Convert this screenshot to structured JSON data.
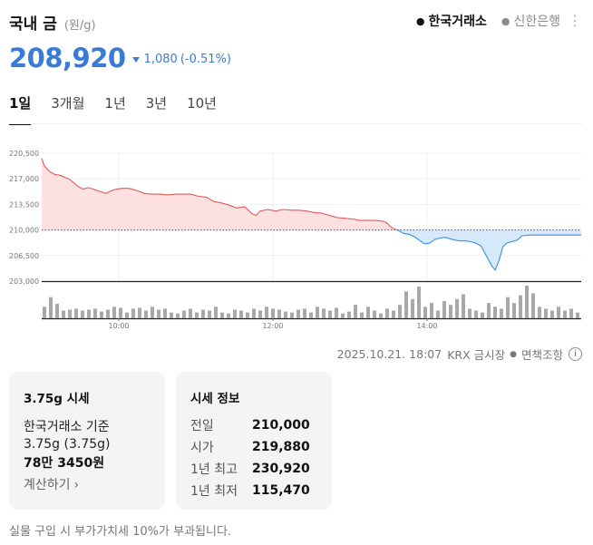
{
  "header": {
    "title": "국내 금",
    "unit": "(원/g)",
    "sources": [
      {
        "label": "한국거래소",
        "active": true
      },
      {
        "label": "신한은행",
        "active": false
      }
    ]
  },
  "price": {
    "value": "208,920",
    "direction": "down",
    "change": "1,080",
    "change_pct": "(-0.51%)"
  },
  "tabs": [
    "1일",
    "3개월",
    "1년",
    "3년",
    "10년"
  ],
  "active_tab": "1일",
  "chart_data": {
    "type": "area",
    "baseline": 210000,
    "y_ticks": [
      "220,500",
      "217,000",
      "213,500",
      "210,000",
      "206,500",
      "203,000"
    ],
    "ylim": [
      203000,
      220500
    ],
    "x_ticks": [
      "10:00",
      "12:00",
      "14:00"
    ],
    "x_tick_minutes": [
      600,
      720,
      840
    ],
    "xlim": [
      540,
      960
    ],
    "series": [
      {
        "x": [
          540,
          542,
          546,
          550,
          554,
          558,
          561,
          564,
          568,
          572,
          576,
          580,
          585,
          590,
          596,
          602,
          608,
          614,
          620,
          626,
          632,
          638,
          644,
          650,
          656,
          662,
          668,
          674,
          680,
          686,
          692,
          698,
          704,
          707,
          710,
          716,
          722,
          728,
          734,
          740,
          746,
          752,
          758,
          764,
          770,
          776,
          782,
          788,
          794,
          800,
          806,
          809,
          812,
          815,
          818,
          822,
          826,
          830,
          834,
          838,
          842,
          846,
          850,
          854,
          858,
          862,
          866,
          870,
          874,
          878,
          882,
          886,
          890,
          893,
          896,
          899,
          902,
          906,
          910,
          914,
          920,
          926,
          932,
          938,
          944,
          950,
          956,
          960
        ],
        "y": [
          219800,
          218800,
          218000,
          217600,
          217500,
          217200,
          217000,
          216600,
          216000,
          215600,
          215800,
          215600,
          215300,
          215000,
          215500,
          215700,
          215700,
          215400,
          215000,
          214900,
          214900,
          214800,
          214900,
          214900,
          214900,
          214600,
          214500,
          213900,
          213700,
          213400,
          213000,
          213200,
          212200,
          212000,
          212600,
          212800,
          212600,
          212800,
          212700,
          212700,
          212600,
          212400,
          212300,
          212000,
          211700,
          211600,
          211500,
          211300,
          211300,
          211300,
          211200,
          210900,
          210400,
          210100,
          209900,
          209500,
          209400,
          209100,
          208600,
          208100,
          208200,
          208700,
          208900,
          209000,
          208800,
          208600,
          208500,
          208500,
          208400,
          208200,
          207800,
          206500,
          205200,
          204500,
          205800,
          207700,
          208200,
          208400,
          208600,
          209200,
          209300,
          209300,
          209300,
          209300,
          209300,
          209300,
          209300,
          209300
        ]
      }
    ],
    "volume": [
      12,
      22,
      15,
      8,
      9,
      10,
      8,
      9,
      10,
      7,
      9,
      12,
      11,
      6,
      10,
      11,
      8,
      12,
      9,
      10,
      6,
      5,
      8,
      10,
      6,
      9,
      8,
      12,
      6,
      5,
      9,
      8,
      6,
      10,
      8,
      12,
      10,
      9,
      7,
      6,
      9,
      10,
      6,
      12,
      10,
      8,
      11,
      5,
      7,
      14,
      6,
      12,
      8,
      5,
      10,
      8,
      14,
      28,
      20,
      33,
      12,
      16,
      8,
      18,
      14,
      20,
      25,
      10,
      8,
      6,
      16,
      12,
      10,
      22,
      16,
      24,
      34,
      26,
      12,
      10,
      8,
      12,
      8,
      10,
      6
    ]
  },
  "meta": {
    "timestamp": "2025.10.21. 18:07",
    "market": "KRX 금시장",
    "disclaimer": "면책조항"
  },
  "card_quote": {
    "title": "3.75g 시세",
    "basis": "한국거래소 기준",
    "weight": "3.75g (3.75g)",
    "price": "78만 3450원",
    "calc_label": "계산하기"
  },
  "card_info": {
    "title": "시세 정보",
    "rows": [
      {
        "label": "전일",
        "value": "210,000"
      },
      {
        "label": "시가",
        "value": "219,880"
      },
      {
        "label": "1년 최고",
        "value": "230,920"
      },
      {
        "label": "1년 최저",
        "value": "115,470"
      }
    ]
  },
  "footer_note": "실물 구입 시 부가가치세 10%가 부과됩니다.",
  "colors": {
    "accent": "#3a7bd5",
    "up_line": "#e05a5a",
    "up_fill": "#fde1e1",
    "down_line": "#3a8ee6",
    "down_fill": "#d6e9fb"
  }
}
